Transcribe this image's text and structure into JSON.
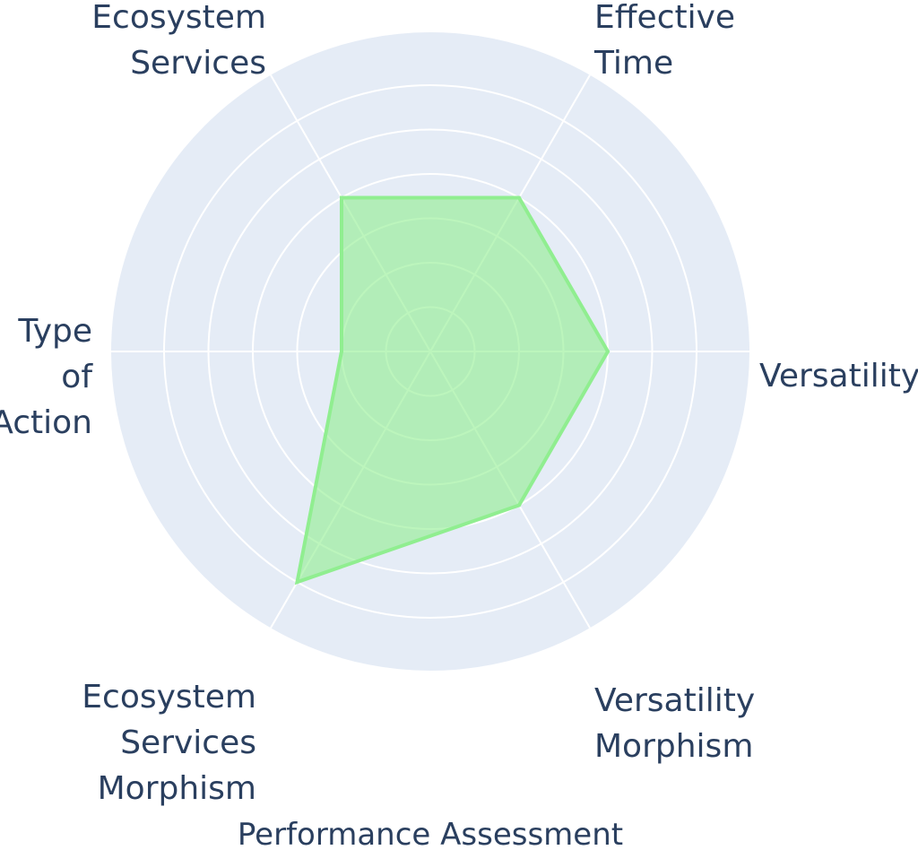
{
  "chart_data": {
    "type": "radar",
    "title": "Performance Assessment",
    "axes": [
      {
        "label_lines": [
          "Versatility"
        ]
      },
      {
        "label_lines": [
          "Effective",
          "Time"
        ]
      },
      {
        "label_lines": [
          "Ecosystem",
          "Services"
        ]
      },
      {
        "label_lines": [
          "Type",
          "of",
          "Action"
        ]
      },
      {
        "label_lines": [
          "Ecosystem",
          "Services",
          "Morphism"
        ]
      },
      {
        "label_lines": [
          "Versatility",
          "Morphism"
        ]
      }
    ],
    "categories": [
      "Versatility",
      "Effective Time",
      "Ecosystem Services",
      "Type of Action",
      "Ecosystem Services Morphism",
      "Versatility Morphism"
    ],
    "series": [
      {
        "values": [
          4,
          4,
          4,
          2,
          6,
          4
        ]
      }
    ],
    "r_range": [
      0,
      6
    ],
    "grid_rings": [
      1,
      2,
      3,
      4,
      5,
      6
    ],
    "grid": true,
    "colors": {
      "background": "#e5ecf6",
      "grid": "#ffffff",
      "fill": "rgba(144, 238, 144, 0.6)",
      "line": "#90ee90",
      "text": "#2a3f5f"
    }
  }
}
